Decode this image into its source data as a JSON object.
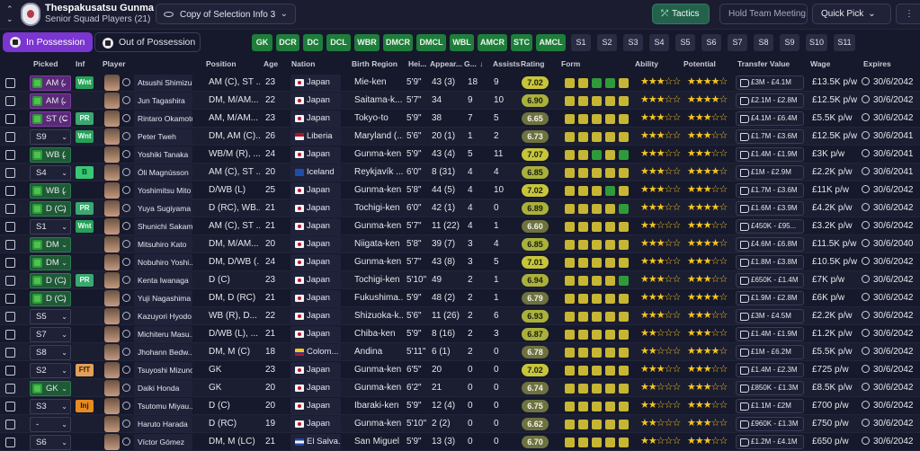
{
  "header": {
    "club_name": "Thespakusatsu Gunma",
    "squad_label": "Senior Squad Players (21)",
    "view_label": "Copy of Selection Info 3",
    "tactics_label": "Tactics",
    "hold_meeting_label": "Hold Team Meeting",
    "quick_pick_label": "Quick Pick"
  },
  "toolbar": {
    "in_possession": "In Possession",
    "out_possession": "Out of Possession",
    "position_filters": [
      "GK",
      "DCR",
      "DC",
      "DCL",
      "WBR",
      "DMCR",
      "DMCL",
      "WBL",
      "AMCR",
      "STC",
      "AMCL"
    ],
    "slot_filters": [
      "S1",
      "S2",
      "S3",
      "S4",
      "S5",
      "S6",
      "S7",
      "S8",
      "S9",
      "S10",
      "S11"
    ]
  },
  "columns": {
    "picked": "Picked",
    "inf": "Inf",
    "player": "Player",
    "position": "Position",
    "age": "Age",
    "nation": "Nation",
    "birth_region": "Birth Region",
    "height": "Hei...",
    "appearances": "Appear...",
    "goals": "G...",
    "sort_arrow": "↓",
    "assists": "Assists",
    "rating": "Rating",
    "form": "Form",
    "ability": "Ability",
    "potential": "Potential",
    "transfer_value": "Transfer Value",
    "wage": "Wage",
    "expires": "Expires"
  },
  "colors": {
    "accent": "#7b35d0",
    "position_filter": "#1e7d3b",
    "tactics": "#24614c"
  },
  "rows": [
    {
      "picked": "AM (",
      "pstyle": "pur",
      "inf": "Wnt",
      "name": "Atsushi Shimizu",
      "pos": "AM (C), ST ...",
      "age": "23",
      "nation": "Japan",
      "flag": "jp",
      "region": "Mie-ken",
      "height": "5'9\"",
      "apps": "43 (3)",
      "goals": "18",
      "assists": "9",
      "rating": "7.02",
      "form": [
        3,
        3,
        2,
        2,
        3
      ],
      "ability": 3,
      "potential": 4,
      "tv": "£3M - £4.1M",
      "wage": "£13.5K p/w",
      "expires": "30/6/2042"
    },
    {
      "picked": "AM (",
      "pstyle": "pur",
      "inf": "",
      "name": "Jun Tagashira",
      "pos": "DM, M/AM...",
      "age": "22",
      "nation": "Japan",
      "flag": "jp",
      "region": "Saitama-k...",
      "height": "5'7\"",
      "apps": "34",
      "goals": "9",
      "assists": "10",
      "rating": "6.90",
      "form": [
        3,
        3,
        3,
        3,
        3
      ],
      "ability": 3,
      "potential": 4,
      "tv": "£2.1M - £2.8M",
      "wage": "£12.5K p/w",
      "expires": "30/6/2042"
    },
    {
      "picked": "ST (C",
      "pstyle": "pur",
      "inf": "PR",
      "name": "Rintaro Okamoto",
      "pos": "AM, M/AM...",
      "age": "23",
      "nation": "Japan",
      "flag": "jp",
      "region": "Tokyo-to",
      "height": "5'9\"",
      "apps": "38",
      "goals": "7",
      "assists": "5",
      "rating": "6.65",
      "form": [
        3,
        3,
        3,
        3,
        3
      ],
      "ability": 3,
      "potential": 3,
      "tv": "£4.1M - £6.4M",
      "wage": "£5.5K p/w",
      "expires": "30/6/2042"
    },
    {
      "picked": "S9",
      "pstyle": "",
      "inf": "Wnt",
      "name": "Peter Tweh",
      "pos": "DM, AM (C)...",
      "age": "26",
      "nation": "Liberia",
      "flag": "lib",
      "region": "Maryland (...",
      "height": "5'6\"",
      "apps": "20 (1)",
      "goals": "1",
      "assists": "2",
      "rating": "6.73",
      "form": [
        3,
        3,
        3,
        3,
        3
      ],
      "ability": 3,
      "potential": 3,
      "tv": "£1.7M - £3.6M",
      "wage": "£12.5K p/w",
      "expires": "30/6/2041"
    },
    {
      "picked": "WB (",
      "pstyle": "grn",
      "inf": "",
      "name": "Yoshiki Tanaka",
      "pos": "WB/M (R), ...",
      "age": "24",
      "nation": "Japan",
      "flag": "jp",
      "region": "Gunma-ken",
      "height": "5'9\"",
      "apps": "43 (4)",
      "goals": "5",
      "assists": "11",
      "rating": "7.07",
      "form": [
        3,
        3,
        2,
        3,
        2
      ],
      "ability": 3,
      "potential": 3,
      "tv": "£1.4M - £1.9M",
      "wage": "£3K p/w",
      "expires": "30/6/2041"
    },
    {
      "picked": "S4",
      "pstyle": "",
      "inf": "B",
      "name": "Óli Magnússon",
      "pos": "AM (C), ST ...",
      "age": "20",
      "nation": "Iceland",
      "flag": "ice",
      "region": "Reykjavík ...",
      "height": "6'0\"",
      "apps": "8 (31)",
      "goals": "4",
      "assists": "4",
      "rating": "6.85",
      "form": [
        3,
        3,
        3,
        3,
        3
      ],
      "ability": 3,
      "potential": 4,
      "tv": "£1M - £2.9M",
      "wage": "£2.2K p/w",
      "expires": "30/6/2041"
    },
    {
      "picked": "WB (",
      "pstyle": "grn",
      "inf": "",
      "name": "Yoshimitsu Mito",
      "pos": "D/WB (L)",
      "age": "25",
      "nation": "Japan",
      "flag": "jp",
      "region": "Gunma-ken",
      "height": "5'8\"",
      "apps": "44 (5)",
      "goals": "4",
      "assists": "10",
      "rating": "7.02",
      "form": [
        3,
        3,
        3,
        2,
        3
      ],
      "ability": 3,
      "potential": 3,
      "tv": "£1.7M - £3.6M",
      "wage": "£11K p/w",
      "expires": "30/6/2042"
    },
    {
      "picked": "D (C)",
      "pstyle": "grn",
      "inf": "PR",
      "name": "Yuya Sugiyama",
      "pos": "D (RC), WB...",
      "age": "21",
      "nation": "Japan",
      "flag": "jp",
      "region": "Tochigi-ken",
      "height": "6'0\"",
      "apps": "42 (1)",
      "goals": "4",
      "assists": "0",
      "rating": "6.89",
      "form": [
        3,
        3,
        3,
        3,
        2
      ],
      "ability": 3,
      "potential": 4,
      "tv": "£1.6M - £3.9M",
      "wage": "£4.2K p/w",
      "expires": "30/6/2042"
    },
    {
      "picked": "S1",
      "pstyle": "",
      "inf": "Wnt",
      "name": "Shunichi Sakam...",
      "pos": "AM (C), ST ...",
      "age": "21",
      "nation": "Japan",
      "flag": "jp",
      "region": "Gunma-ken",
      "height": "5'7\"",
      "apps": "11 (22)",
      "goals": "4",
      "assists": "1",
      "rating": "6.60",
      "form": [
        3,
        3,
        3,
        3,
        3
      ],
      "ability": 2,
      "potential": 3,
      "tv": "£450K - £95...",
      "wage": "£3.2K p/w",
      "expires": "30/6/2042"
    },
    {
      "picked": "DM",
      "pstyle": "grn",
      "inf": "",
      "name": "Mitsuhiro Kato",
      "pos": "DM, M/AM...",
      "age": "20",
      "nation": "Japan",
      "flag": "jp",
      "region": "Niigata-ken",
      "height": "5'8\"",
      "apps": "39 (7)",
      "goals": "3",
      "assists": "4",
      "rating": "6.85",
      "form": [
        3,
        3,
        3,
        3,
        3
      ],
      "ability": 3,
      "potential": 4,
      "tv": "£4.6M - £6.8M",
      "wage": "£11.5K p/w",
      "expires": "30/6/2040"
    },
    {
      "picked": "DM",
      "pstyle": "grn",
      "inf": "",
      "name": "Nobuhiro Yoshi...",
      "pos": "DM, D/WB (...",
      "age": "24",
      "nation": "Japan",
      "flag": "jp",
      "region": "Gunma-ken",
      "height": "5'7\"",
      "apps": "43 (8)",
      "goals": "3",
      "assists": "5",
      "rating": "7.01",
      "form": [
        3,
        3,
        3,
        3,
        3
      ],
      "ability": 3,
      "potential": 3,
      "tv": "£1.8M - £3.8M",
      "wage": "£10.5K p/w",
      "expires": "30/6/2042"
    },
    {
      "picked": "D (C)",
      "pstyle": "grn",
      "inf": "PR",
      "name": "Kenta Iwanaga",
      "pos": "D (C)",
      "age": "23",
      "nation": "Japan",
      "flag": "jp",
      "region": "Tochigi-ken",
      "height": "5'10\"",
      "apps": "49",
      "goals": "2",
      "assists": "1",
      "rating": "6.94",
      "form": [
        3,
        3,
        3,
        3,
        2
      ],
      "ability": 3,
      "potential": 3,
      "tv": "£650K - £1.4M",
      "wage": "£7K p/w",
      "expires": "30/6/2042"
    },
    {
      "picked": "D (C)",
      "pstyle": "grn",
      "inf": "",
      "name": "Yuji Nagashima",
      "pos": "DM, D (RC)",
      "age": "21",
      "nation": "Japan",
      "flag": "jp",
      "region": "Fukushima...",
      "height": "5'9\"",
      "apps": "48 (2)",
      "goals": "2",
      "assists": "1",
      "rating": "6.79",
      "form": [
        3,
        3,
        3,
        3,
        3
      ],
      "ability": 3,
      "potential": 4,
      "tv": "£1.9M - £2.8M",
      "wage": "£6K p/w",
      "expires": "30/6/2042"
    },
    {
      "picked": "S5",
      "pstyle": "",
      "inf": "",
      "name": "Kazuyori Hyodo",
      "pos": "WB (R), D...",
      "age": "22",
      "nation": "Japan",
      "flag": "jp",
      "region": "Shizuoka-k...",
      "height": "5'6\"",
      "apps": "11 (26)",
      "goals": "2",
      "assists": "6",
      "rating": "6.93",
      "form": [
        3,
        3,
        3,
        3,
        3
      ],
      "ability": 3,
      "potential": 3,
      "tv": "£3M - £4.5M",
      "wage": "£2.2K p/w",
      "expires": "30/6/2042"
    },
    {
      "picked": "S7",
      "pstyle": "",
      "inf": "",
      "name": "Michiteru Masu...",
      "pos": "D/WB (L), ...",
      "age": "21",
      "nation": "Japan",
      "flag": "jp",
      "region": "Chiba-ken",
      "height": "5'9\"",
      "apps": "8 (16)",
      "goals": "2",
      "assists": "3",
      "rating": "6.87",
      "form": [
        3,
        3,
        3,
        3,
        3
      ],
      "ability": 2,
      "potential": 3,
      "tv": "£1.4M - £1.9M",
      "wage": "£1.2K p/w",
      "expires": "30/6/2042"
    },
    {
      "picked": "S8",
      "pstyle": "",
      "inf": "",
      "name": "Jhohann Bedw...",
      "pos": "DM, M (C)",
      "age": "18",
      "nation": "Colom...",
      "flag": "col",
      "region": "Andina",
      "height": "5'11\"",
      "apps": "6 (1)",
      "goals": "2",
      "assists": "0",
      "rating": "6.78",
      "form": [
        3,
        3,
        3,
        3,
        3
      ],
      "ability": 2,
      "potential": 4,
      "tv": "£1M - £6.2M",
      "wage": "£5.5K p/w",
      "expires": "30/6/2042"
    },
    {
      "picked": "S2",
      "pstyle": "",
      "inf": "FfT",
      "name": "Tsuyoshi Mizuno",
      "pos": "GK",
      "age": "23",
      "nation": "Japan",
      "flag": "jp",
      "region": "Gunma-ken",
      "height": "6'5\"",
      "apps": "20",
      "goals": "0",
      "assists": "0",
      "rating": "7.02",
      "form": [
        3,
        3,
        3,
        3,
        3
      ],
      "ability": 3,
      "potential": 3,
      "tv": "£1.4M - £2.3M",
      "wage": "£725 p/w",
      "expires": "30/6/2042"
    },
    {
      "picked": "GK",
      "pstyle": "grn",
      "inf": "",
      "name": "Daiki Honda",
      "pos": "GK",
      "age": "20",
      "nation": "Japan",
      "flag": "jp",
      "region": "Gunma-ken",
      "height": "6'2\"",
      "apps": "21",
      "goals": "0",
      "assists": "0",
      "rating": "6.74",
      "form": [
        3,
        3,
        3,
        3,
        3
      ],
      "ability": 2,
      "potential": 3,
      "tv": "£850K - £1.3M",
      "wage": "£8.5K p/w",
      "expires": "30/6/2042"
    },
    {
      "picked": "S3",
      "pstyle": "",
      "inf": "Inj",
      "name": "Tsutomu Miyau...",
      "pos": "D (C)",
      "age": "20",
      "nation": "Japan",
      "flag": "jp",
      "region": "Ibaraki-ken",
      "height": "5'9\"",
      "apps": "12 (4)",
      "goals": "0",
      "assists": "0",
      "rating": "6.75",
      "form": [
        3,
        3,
        3,
        3,
        3
      ],
      "ability": 2,
      "potential": 3,
      "tv": "£1.1M - £2M",
      "wage": "£700 p/w",
      "expires": "30/6/2042"
    },
    {
      "picked": "-",
      "pstyle": "",
      "inf": "",
      "name": "Haruto Harada",
      "pos": "D (RC)",
      "age": "19",
      "nation": "Japan",
      "flag": "jp",
      "region": "Gunma-ken",
      "height": "5'10\"",
      "apps": "2 (2)",
      "goals": "0",
      "assists": "0",
      "rating": "6.62",
      "form": [
        3,
        3,
        3,
        3,
        3
      ],
      "ability": 2,
      "potential": 3,
      "tv": "£960K - £1.3M",
      "wage": "£750 p/w",
      "expires": "30/6/2042"
    },
    {
      "picked": "S6",
      "pstyle": "",
      "inf": "",
      "name": "Víctor Gómez",
      "pos": "DM, M (LC)",
      "age": "21",
      "nation": "El Salva...",
      "flag": "sal",
      "region": "San Miguel",
      "height": "5'9\"",
      "apps": "13 (3)",
      "goals": "0",
      "assists": "0",
      "rating": "6.70",
      "form": [
        3,
        3,
        3,
        3,
        3
      ],
      "ability": 2,
      "potential": 3,
      "tv": "£1.2M - £4.1M",
      "wage": "£650 p/w",
      "expires": "30/6/2042"
    }
  ]
}
